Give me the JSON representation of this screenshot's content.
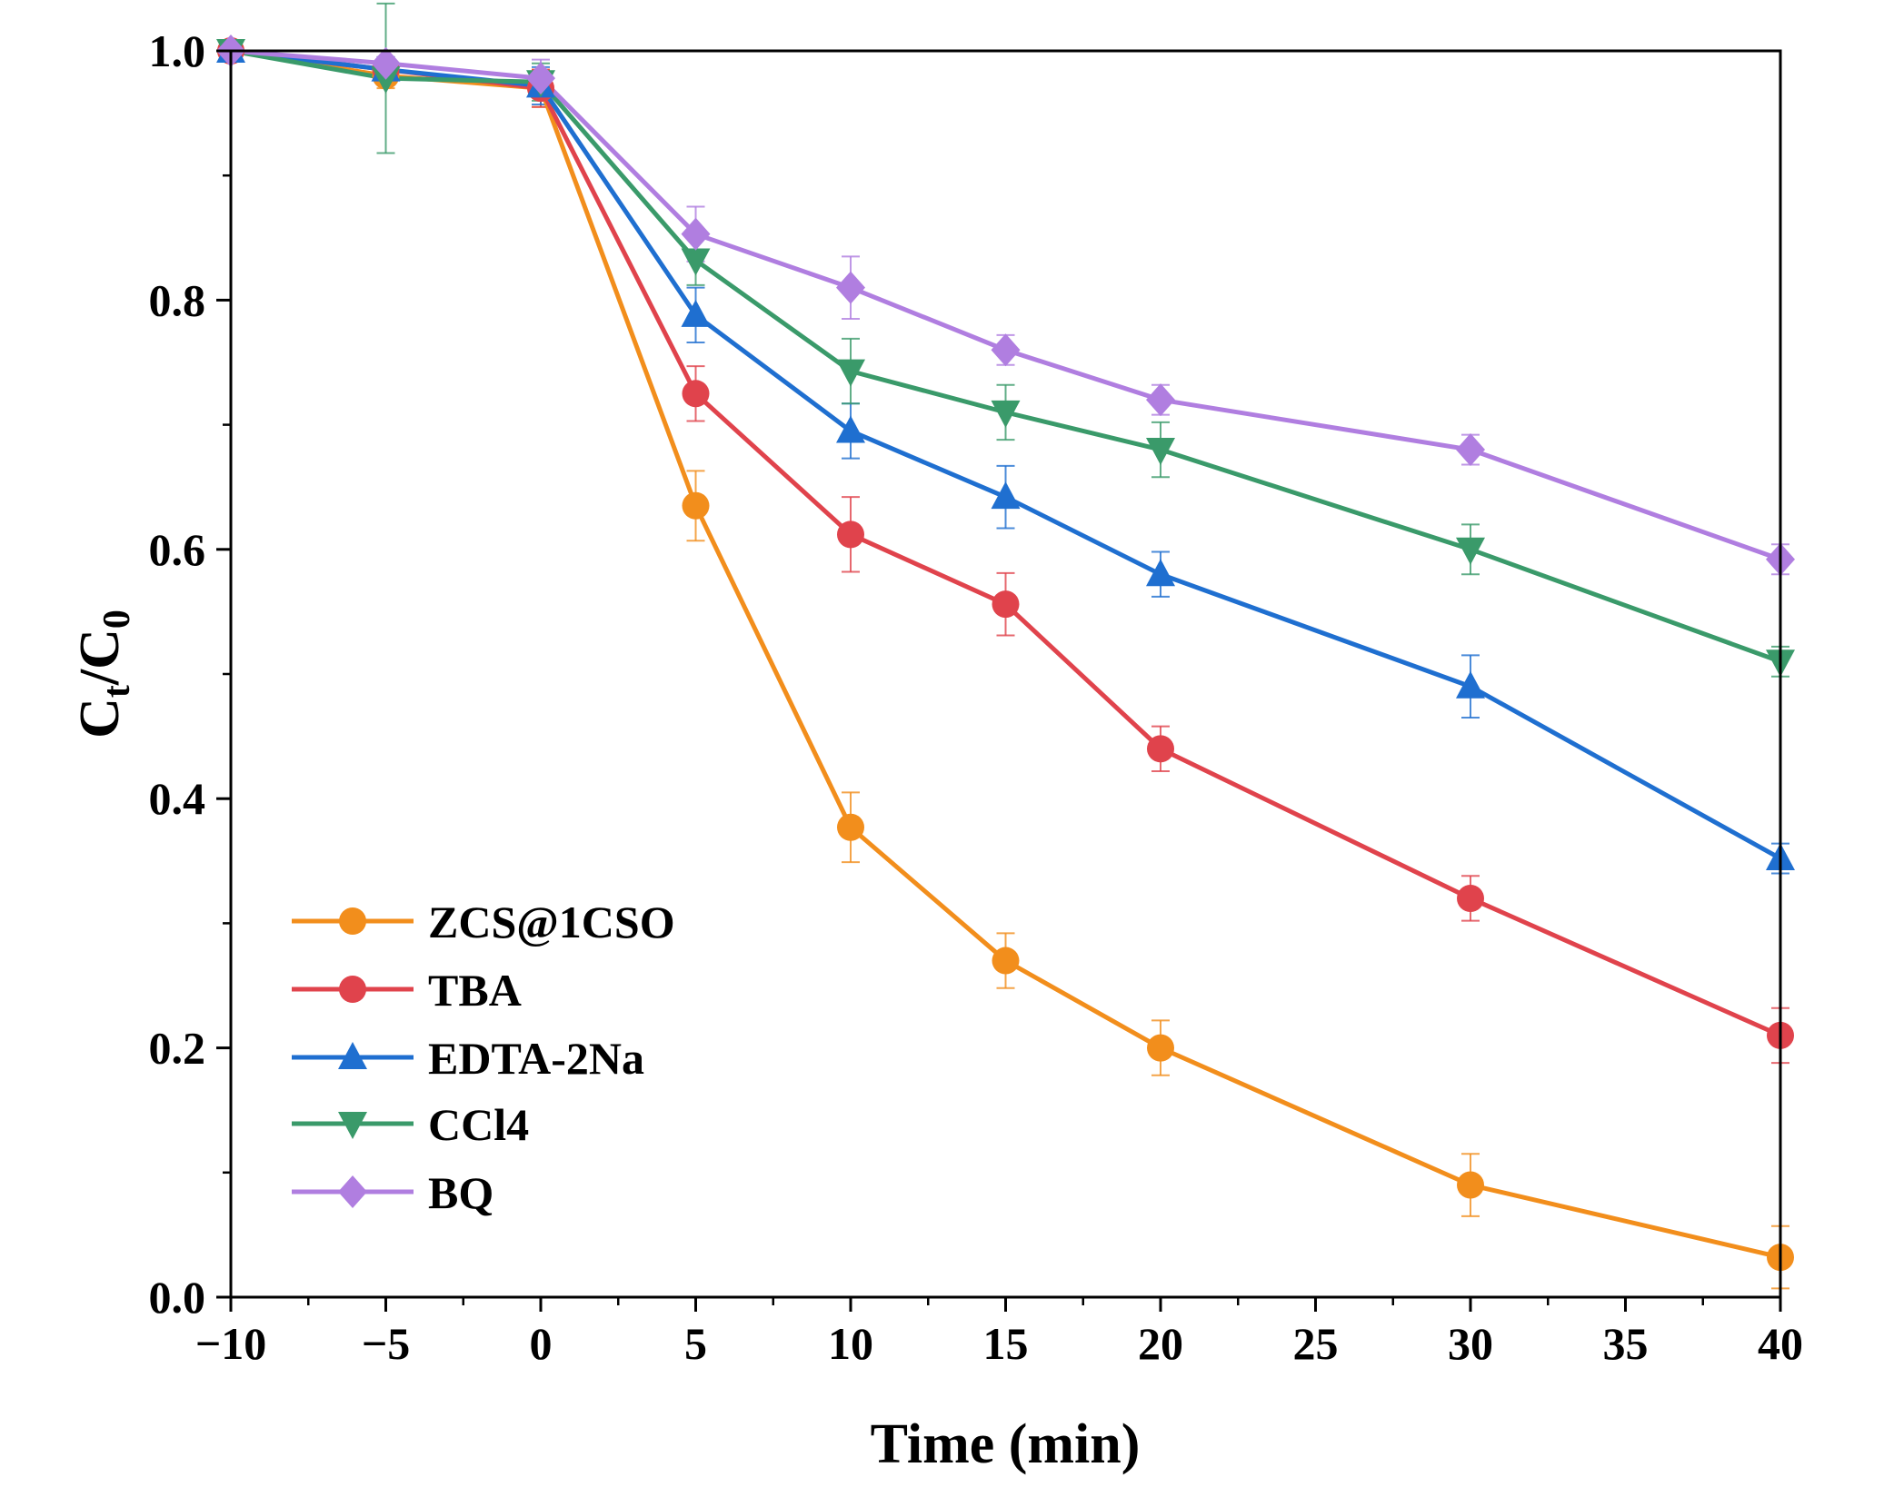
{
  "chart_data": {
    "type": "line",
    "title": "",
    "xlabel": "Time (min)",
    "ylabel_main": "C",
    "ylabel_sub1": "t",
    "ylabel_mid": "/C",
    "ylabel_sub2": "0",
    "ylabel": "Ct/C0",
    "xlim": [
      -10,
      40
    ],
    "ylim": [
      0,
      1.0
    ],
    "xticks": [
      "−10",
      "−5",
      "0",
      "5",
      "10",
      "15",
      "20",
      "25",
      "30",
      "35",
      "40"
    ],
    "xtick_values": [
      -10,
      -5,
      0,
      5,
      10,
      15,
      20,
      25,
      30,
      35,
      40
    ],
    "yticks": [
      "0.0",
      "0.2",
      "0.4",
      "0.6",
      "0.8",
      "1.0"
    ],
    "ytick_values": [
      0,
      0.2,
      0.4,
      0.6,
      0.8,
      1.0
    ],
    "grid": false,
    "legend_position": "bottom-left",
    "x": [
      -10,
      -5,
      0,
      5,
      10,
      15,
      20,
      30,
      40
    ],
    "series": [
      {
        "name": "ZCS@1CSO",
        "color": "#f28e1c",
        "marker": "circle",
        "values": [
          1.0,
          0.98,
          0.97,
          0.635,
          0.377,
          0.27,
          0.2,
          0.09,
          0.032
        ],
        "errors": [
          0.005,
          0.01,
          0.015,
          0.028,
          0.028,
          0.022,
          0.022,
          0.025,
          0.025
        ]
      },
      {
        "name": "TBA",
        "color": "#e0434c",
        "marker": "circle",
        "values": [
          1.0,
          0.985,
          0.97,
          0.725,
          0.612,
          0.556,
          0.44,
          0.32,
          0.21
        ],
        "errors": [
          0.005,
          0.01,
          0.015,
          0.022,
          0.03,
          0.025,
          0.018,
          0.018,
          0.022
        ]
      },
      {
        "name": "EDTA-2Na",
        "color": "#1f6fd0",
        "marker": "triangle-up",
        "values": [
          1.0,
          0.985,
          0.972,
          0.788,
          0.695,
          0.642,
          0.58,
          0.49,
          0.352
        ],
        "errors": [
          0.005,
          0.01,
          0.015,
          0.022,
          0.022,
          0.025,
          0.018,
          0.025,
          0.012
        ]
      },
      {
        "name": "CCl4",
        "color": "#3a9a6a",
        "marker": "triangle-down",
        "values": [
          1.0,
          0.978,
          0.975,
          0.832,
          0.743,
          0.71,
          0.68,
          0.6,
          0.51
        ],
        "errors": [
          0.005,
          0.06,
          0.015,
          0.02,
          0.026,
          0.022,
          0.022,
          0.02,
          0.012
        ]
      },
      {
        "name": "BQ",
        "color": "#b07ee0",
        "marker": "diamond",
        "values": [
          1.0,
          0.99,
          0.978,
          0.853,
          0.81,
          0.76,
          0.72,
          0.68,
          0.592
        ],
        "errors": [
          0.005,
          0.01,
          0.015,
          0.022,
          0.025,
          0.012,
          0.012,
          0.012,
          0.012
        ]
      }
    ]
  }
}
